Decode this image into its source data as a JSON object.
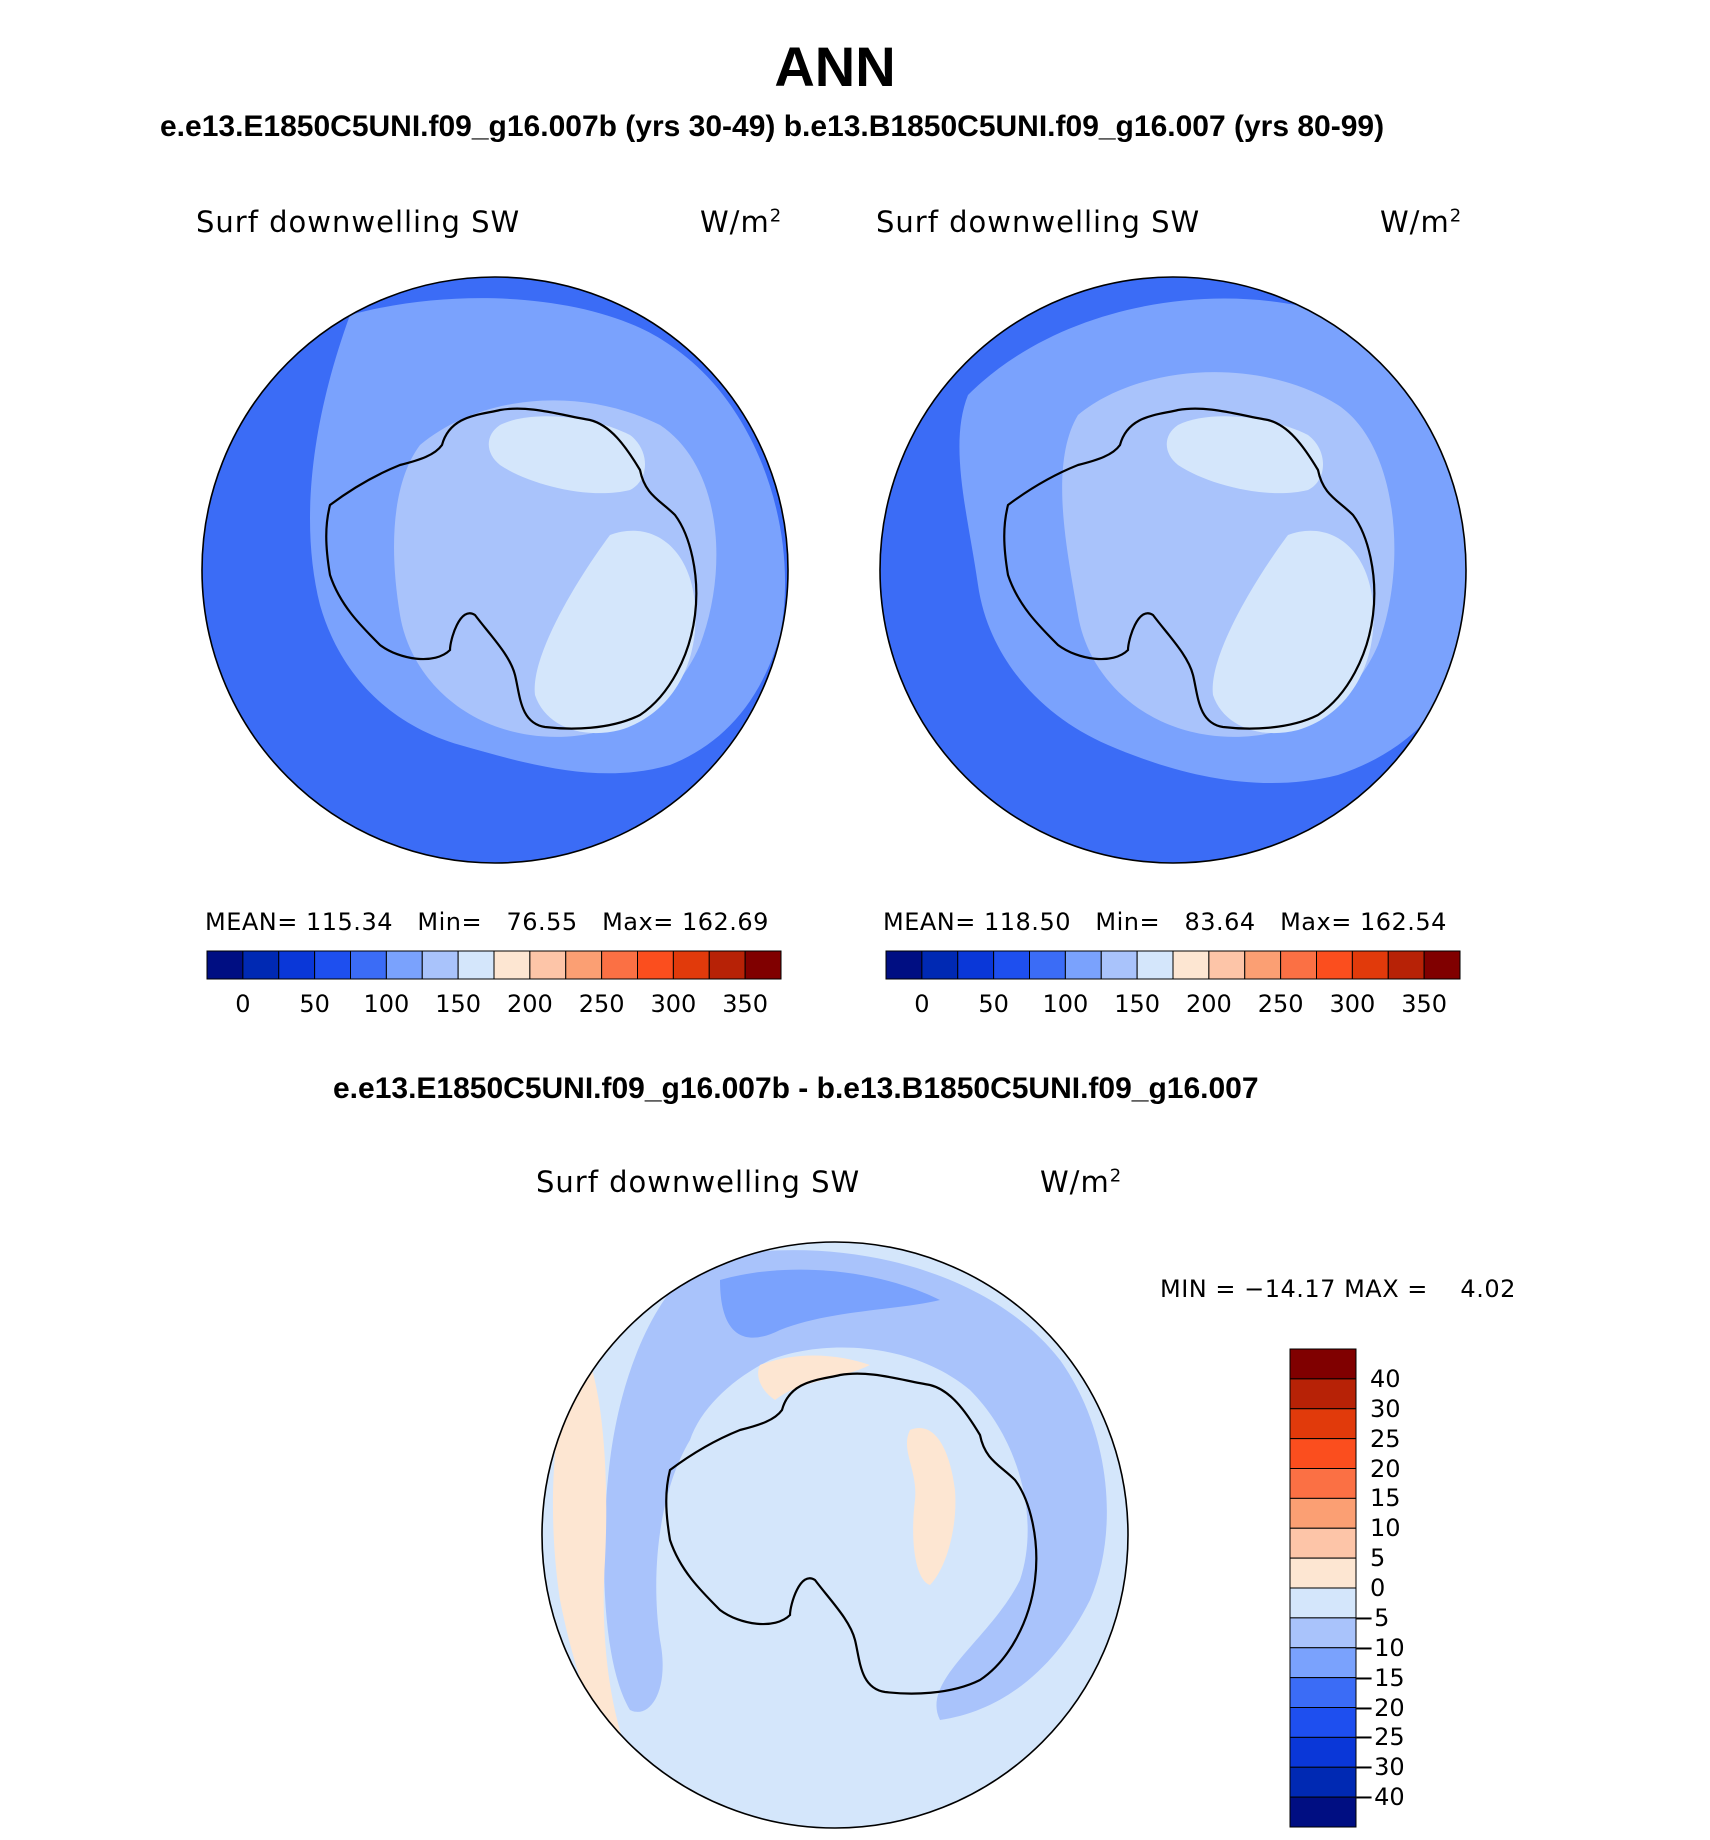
{
  "title": "ANN",
  "subtitle_top": "e.e13.E1850C5UNI.f09_g16.007b (yrs 30-49)  b.e13.B1850C5UNI.f09_g16.007 (yrs 80-99)",
  "subtitle_diff": "e.e13.E1850C5UNI.f09_g16.007b - b.e13.B1850C5UNI.f09_g16.007",
  "colors": {
    "abs_scale": [
      "#000e82",
      "#0029b3",
      "#0a37d8",
      "#1e4fef",
      "#3b6cf6",
      "#7aa2fd",
      "#a9c3fb",
      "#d4e6fb",
      "#fde6d2",
      "#fdc5a8",
      "#fb9f73",
      "#fb7044",
      "#fb4e1e",
      "#e13a0b",
      "#b72206",
      "#800000"
    ],
    "diff_scale": [
      "#000e82",
      "#0029b3",
      "#0a37d8",
      "#1e4fef",
      "#3b6cf6",
      "#7aa2fd",
      "#a9c3fb",
      "#d4e6fb",
      "#fde6d2",
      "#fdc5a8",
      "#fb9f73",
      "#fb7044",
      "#fb4e1e",
      "#e13a0b",
      "#b72206",
      "#800000"
    ]
  },
  "panels": [
    {
      "id": "left",
      "variable": "Surf downwelling SW",
      "units": "W/m",
      "units_sup": "2",
      "mean_label": "MEAN=",
      "mean": "115.34",
      "min_label": "Min=",
      "min": "76.55",
      "max_label": "Max=",
      "max": "162.69",
      "colorbar_ticks": [
        "0",
        "50",
        "100",
        "150",
        "200",
        "250",
        "300",
        "350"
      ]
    },
    {
      "id": "right",
      "variable": "Surf downwelling SW",
      "units": "W/m",
      "units_sup": "2",
      "mean_label": "MEAN=",
      "mean": "118.50",
      "min_label": "Min=",
      "min": "83.64",
      "max_label": "Max=",
      "max": "162.54",
      "colorbar_ticks": [
        "0",
        "50",
        "100",
        "150",
        "200",
        "250",
        "300",
        "350"
      ]
    }
  ],
  "diff_panel": {
    "variable": "Surf downwelling SW",
    "units": "W/m",
    "units_sup": "2",
    "min_label": "MIN =",
    "min": "−14.17",
    "max_label": "MAX =",
    "max": "4.02",
    "colorbar_ticks": [
      "40",
      "30",
      "25",
      "20",
      "15",
      "10",
      "5",
      "0",
      "−5",
      "−10",
      "−15",
      "−20",
      "−25",
      "−30",
      "−40"
    ]
  },
  "chart_data": {
    "type": "heatmap",
    "projection": "south polar stereographic",
    "panels": [
      {
        "variable": "Surf downwelling SW",
        "units": "W/m2",
        "mean": 115.34,
        "min": 76.55,
        "max": 162.69,
        "colorbar_levels": [
          0,
          50,
          100,
          150,
          200,
          250,
          300,
          350
        ]
      },
      {
        "variable": "Surf downwelling SW",
        "units": "W/m2",
        "mean": 118.5,
        "min": 83.64,
        "max": 162.54,
        "colorbar_levels": [
          0,
          50,
          100,
          150,
          200,
          250,
          300,
          350
        ]
      },
      {
        "variable": "Surf downwelling SW",
        "units": "W/m2",
        "min": -14.17,
        "max": 4.02,
        "colorbar_levels": [
          -40,
          -30,
          -25,
          -20,
          -15,
          -10,
          -5,
          0,
          5,
          10,
          15,
          20,
          25,
          30,
          40
        ]
      }
    ]
  }
}
